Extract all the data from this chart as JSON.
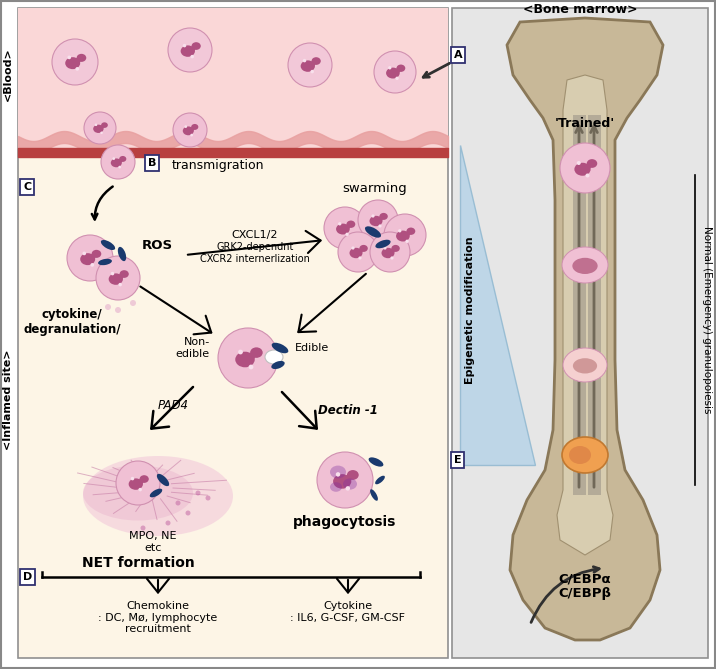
{
  "bone_marrow_label": "<Bone marrow>",
  "blood_label": "<Blood>",
  "inflamed_label": "<Inflamed site>",
  "text_labels": {
    "transmigration": "transmigration",
    "swarming": "swarming",
    "ROS": "ROS",
    "cytokine_degranulation": "cytokine/\ndegranulation/",
    "cxcl12": "CXCL1/2",
    "grk2": "GRK2-dependnt\nCXCR2 internerlization",
    "non_edible": "Non-\nedible",
    "edible": "Edible",
    "pad4": "PAD4",
    "mpo_ne": "MPO, NE\netc",
    "dectin1": "Dectin -1",
    "net_formation": "NET formation",
    "phagocytosis": "phagocytosis",
    "chemokine": "Chemokine\n: DC, Mø, lymphocyte\nrecruitment",
    "cytokine": "Cytokine\n: IL6, G-CSF, GM-CSF",
    "trained": "'Trained'",
    "epigenetic": "Epigenetic modification",
    "normal_emergency": "Normal (Emergency) granulopoiesis",
    "cebp": "C/EBPα\nC/EBPβ"
  },
  "colors": {
    "blood_bg": "#fad7d7",
    "inflamed_bg": "#fdf5e6",
    "bone_marrow_bg": "#e6e6e6",
    "vessel_wall_pink": "#e8a0a0",
    "vessel_red": "#b84040",
    "cell_outer": "#f0c0d4",
    "cell_nucleus_dark": "#b05080",
    "cell_nucleus_med": "#c87090",
    "bacteria_dark": "#1a3a6e",
    "bone_outer": "#c8b898",
    "bone_inner": "#d8cdb0",
    "bone_edge": "#8a7858",
    "gray_col": "#a8a090",
    "blue_tri": "#b8d4e8",
    "orange_cell": "#f0a050",
    "arrow_dark": "#303030",
    "net_spread": "#f0c0d8"
  }
}
